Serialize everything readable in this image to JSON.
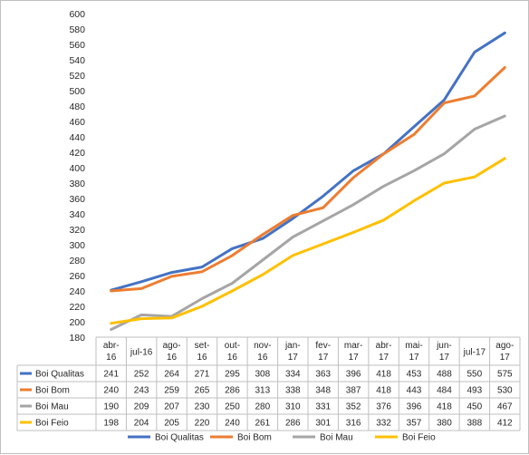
{
  "chart_data": {
    "type": "line",
    "title": "",
    "xlabel": "",
    "ylabel": "",
    "ylim": [
      180,
      600
    ],
    "yticks": [
      180,
      200,
      220,
      240,
      260,
      280,
      300,
      320,
      340,
      360,
      380,
      400,
      420,
      440,
      460,
      480,
      500,
      520,
      540,
      560,
      580,
      600
    ],
    "grid": false,
    "legend_position": "bottom",
    "data_table": true,
    "categories": [
      [
        "abr-",
        "16"
      ],
      [
        "jul-16",
        ""
      ],
      [
        "ago-",
        "16"
      ],
      [
        "set-",
        "16"
      ],
      [
        "out-",
        "16"
      ],
      [
        "nov-",
        "16"
      ],
      [
        "jan-",
        "17"
      ],
      [
        "fev-",
        "17"
      ],
      [
        "mar-",
        "17"
      ],
      [
        "abr-",
        "17"
      ],
      [
        "mai-",
        "17"
      ],
      [
        "jun-",
        "17"
      ],
      [
        "jul-17",
        ""
      ],
      [
        "ago-",
        "17"
      ]
    ],
    "series": [
      {
        "name": "Boi Qualitas",
        "color": "#4472C4",
        "values": [
          241,
          252,
          264,
          271,
          295,
          308,
          334,
          363,
          396,
          418,
          453,
          488,
          550,
          575
        ]
      },
      {
        "name": "Boi Bom",
        "color": "#ED7D31",
        "values": [
          240,
          243,
          259,
          265,
          286,
          313,
          338,
          348,
          387,
          418,
          443,
          484,
          493,
          530
        ]
      },
      {
        "name": "Boi Mau",
        "color": "#A5A5A5",
        "values": [
          190,
          209,
          207,
          230,
          250,
          280,
          310,
          331,
          352,
          376,
          396,
          418,
          450,
          467
        ]
      },
      {
        "name": "Boi Feio",
        "color": "#FFC000",
        "values": [
          198,
          204,
          205,
          220,
          240,
          261,
          286,
          301,
          316,
          332,
          357,
          380,
          388,
          412
        ]
      }
    ]
  }
}
